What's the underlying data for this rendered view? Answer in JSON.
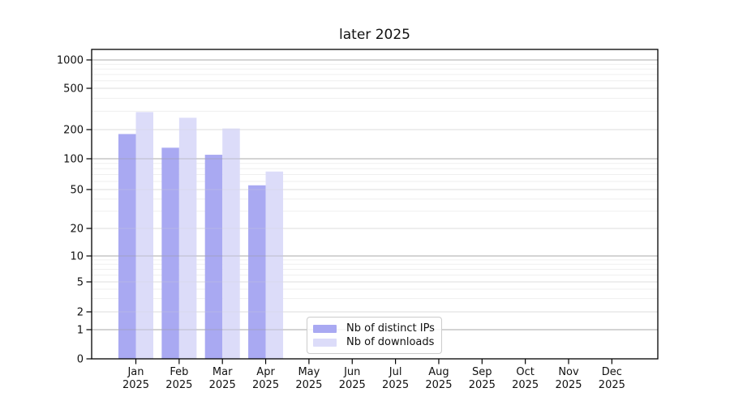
{
  "chart_data": {
    "type": "bar",
    "title": "later 2025",
    "categories": [
      "Jan",
      "Feb",
      "Mar",
      "Apr",
      "May",
      "Jun",
      "Jul",
      "Aug",
      "Sep",
      "Oct",
      "Nov",
      "Dec"
    ],
    "x_tick_year": "2025",
    "series": [
      {
        "name": "Nb of distinct IPs",
        "color": "#a9a9f2",
        "values": [
          180,
          130,
          110,
          55,
          0,
          0,
          0,
          0,
          0,
          0,
          0,
          0
        ]
      },
      {
        "name": "Nb of downloads",
        "color": "#dcdcf9",
        "values": [
          295,
          260,
          205,
          75,
          0,
          0,
          0,
          0,
          0,
          0,
          0,
          0
        ]
      }
    ],
    "y_scale": "symlog",
    "y_ticks": [
      0,
      1,
      2,
      5,
      10,
      20,
      50,
      100,
      200,
      500,
      1000
    ],
    "y_minor_ticks": [
      3,
      4,
      6,
      7,
      8,
      9,
      30,
      40,
      60,
      70,
      80,
      90,
      300,
      400,
      600,
      700,
      800,
      900
    ],
    "ylim": [
      0,
      1300
    ],
    "grid": "horizontal",
    "legend": {
      "position": "lower-center",
      "items": [
        "Nb of distinct IPs",
        "Nb of downloads"
      ]
    }
  }
}
